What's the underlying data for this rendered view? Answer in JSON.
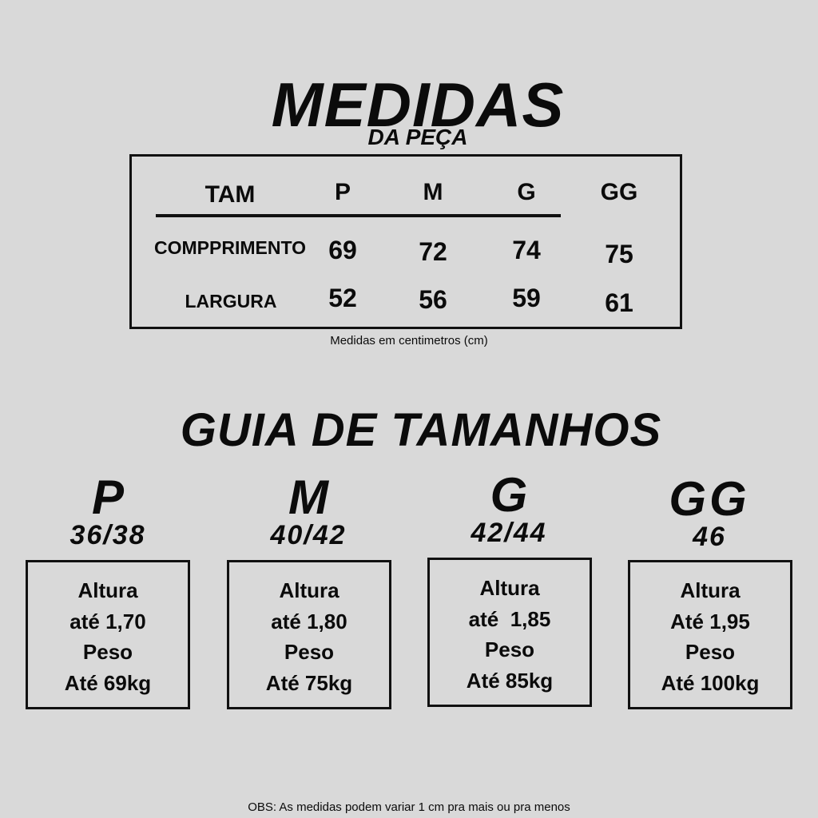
{
  "measurements": {
    "title": "MEDIDAS",
    "subtitle": "DA PEÇA",
    "header": {
      "label": "TAM",
      "sizes": [
        "P",
        "M",
        "G",
        "GG"
      ]
    },
    "rows": [
      {
        "label": "COMPPRIMENTO",
        "values": [
          "69",
          "72",
          "74",
          "75"
        ]
      },
      {
        "label": "LARGURA",
        "values": [
          "52",
          "56",
          "59",
          "61"
        ]
      }
    ],
    "caption": "Medidas em centimetros (cm)"
  },
  "guide": {
    "title": "GUIA DE TAMANHOS",
    "sizes": [
      {
        "letter": "P",
        "number": "36/38",
        "lines": [
          "Altura",
          "até 1,70",
          "Peso",
          "Até 69kg"
        ]
      },
      {
        "letter": "M",
        "number": "40/42",
        "lines": [
          "Altura",
          "até 1,80",
          "Peso",
          "Até 75kg"
        ]
      },
      {
        "letter": "G",
        "number": "42/44",
        "lines": [
          "Altura",
          "até  1,85",
          "Peso",
          "Até 85kg"
        ]
      },
      {
        "letter": "GG",
        "number": "46",
        "lines": [
          "Altura",
          "Até 1,95",
          "Peso",
          "Até 100kg"
        ]
      }
    ]
  },
  "footer": "OBS: As medidas podem variar 1 cm pra mais ou pra menos"
}
